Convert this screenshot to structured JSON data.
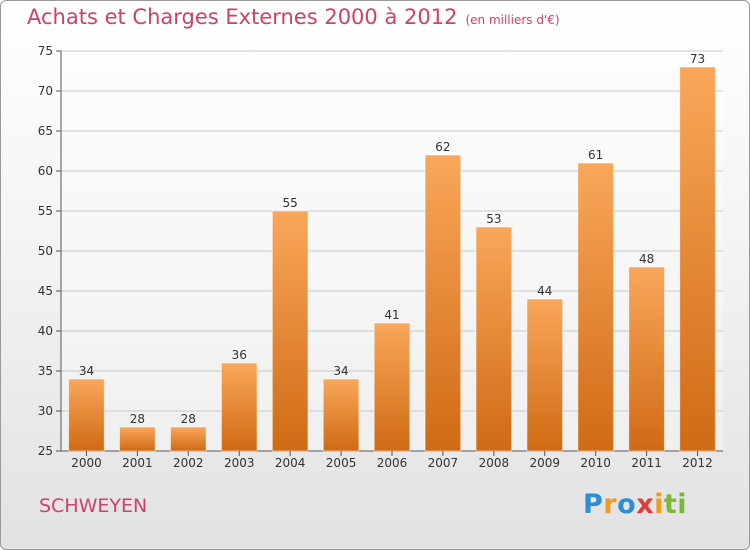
{
  "page": {
    "title": "Achats et Charges Externes 2000 à 2012",
    "unit_label": "(en milliers d'€)",
    "place_name": "SCHWEYEN",
    "logo_parts": [
      "P",
      "r",
      "o",
      "x",
      "i",
      "ti"
    ]
  },
  "colors": {
    "title": "#d0406a",
    "bar_top": "#f9a75a",
    "bar_bottom": "#d06a14",
    "grid": "#c8c8c8"
  },
  "chart_data": {
    "type": "bar",
    "title": "Achats et Charges Externes 2000 à 2012",
    "subtitle": "(en milliers d'€)",
    "xlabel": "",
    "ylabel": "",
    "categories": [
      "2000",
      "2001",
      "2002",
      "2003",
      "2004",
      "2005",
      "2006",
      "2007",
      "2008",
      "2009",
      "2010",
      "2011",
      "2012"
    ],
    "values": [
      34,
      28,
      28,
      36,
      55,
      34,
      41,
      62,
      53,
      44,
      61,
      48,
      73
    ],
    "ylim": [
      25,
      75
    ],
    "yticks": [
      25,
      30,
      35,
      40,
      45,
      50,
      55,
      60,
      65,
      70,
      75
    ],
    "grid": true,
    "legend": "none"
  }
}
